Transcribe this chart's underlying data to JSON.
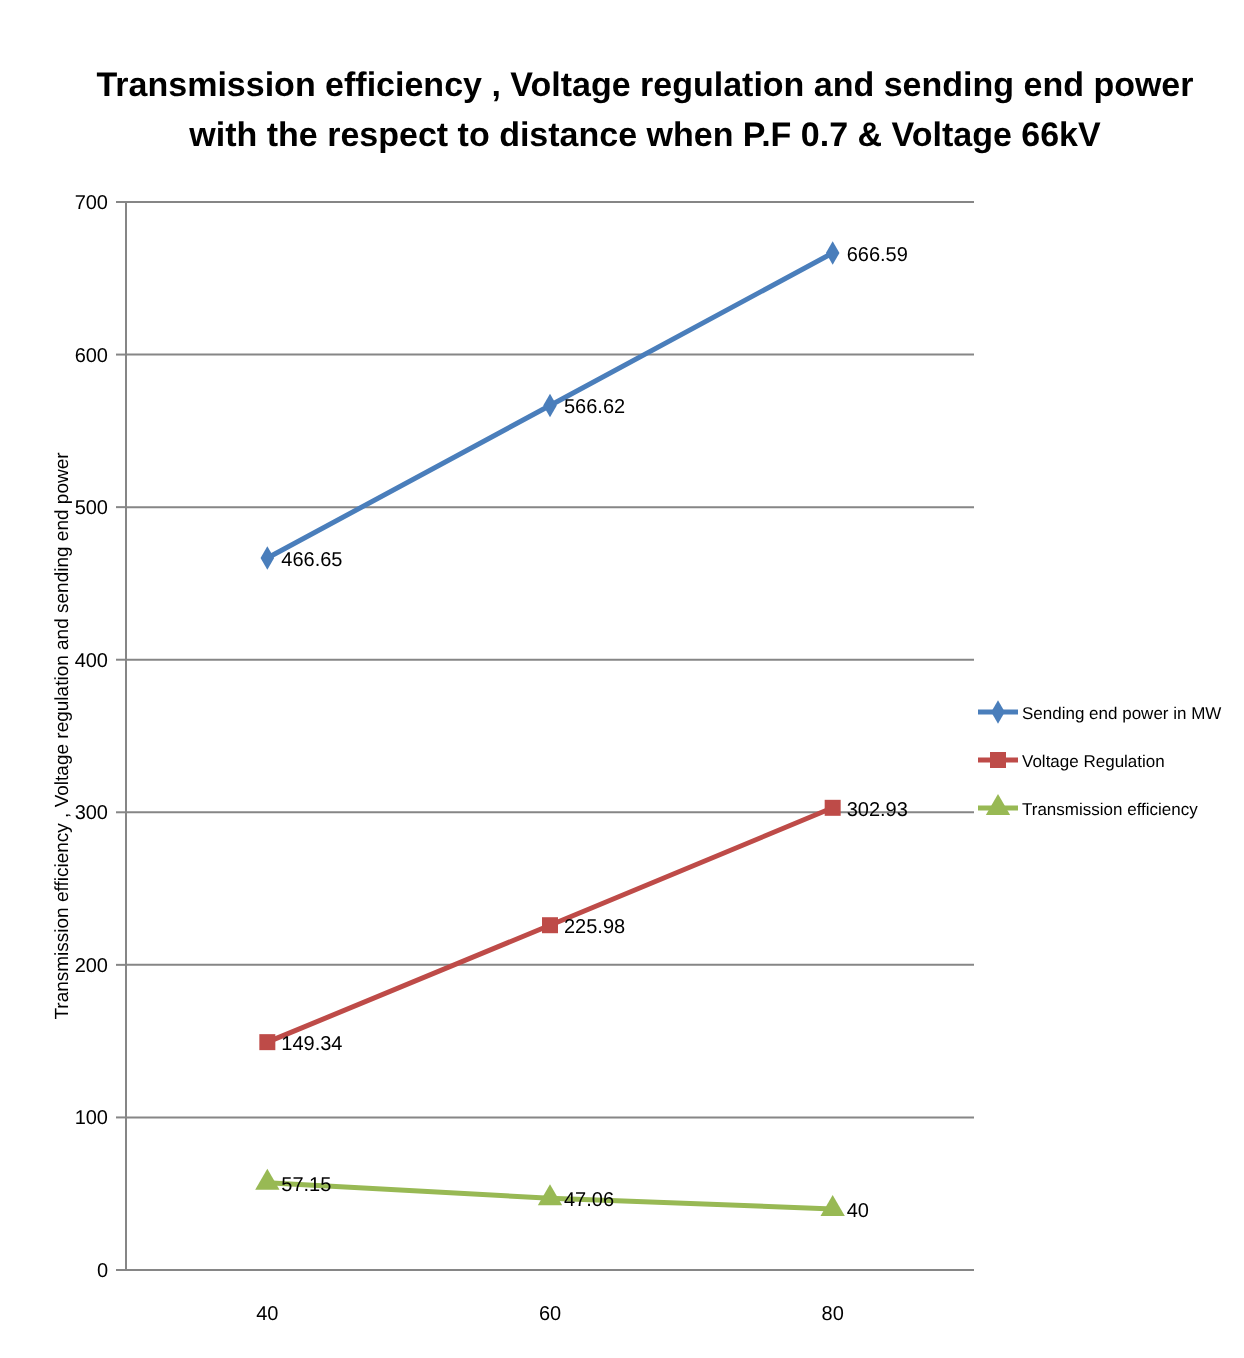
{
  "chart_data": {
    "type": "line",
    "title": "Transmission efficiency , Voltage regulation and sending end power with the respect to distance when P.F 0.7 & Voltage 66kV",
    "ylabel": "Transmission efficiency , Voltage regulation and sending end power",
    "categories": [
      "40",
      "60",
      "80"
    ],
    "series": [
      {
        "name": "Sending end power in MW",
        "color": "#4a7ebb",
        "marker": "diamond",
        "values": [
          466.65,
          566.62,
          666.59
        ]
      },
      {
        "name": "Voltage Regulation",
        "color": "#be4b48",
        "marker": "square",
        "values": [
          149.34,
          225.98,
          302.93
        ]
      },
      {
        "name": "Transmission efficiency",
        "color": "#98b954",
        "marker": "triangle",
        "values": [
          57.15,
          47.06,
          40
        ]
      }
    ],
    "ylim": [
      0,
      700
    ],
    "yticks": [
      0,
      100,
      200,
      300,
      400,
      500,
      600,
      700
    ],
    "grid": "y",
    "legend": "right",
    "data_labels": true
  }
}
